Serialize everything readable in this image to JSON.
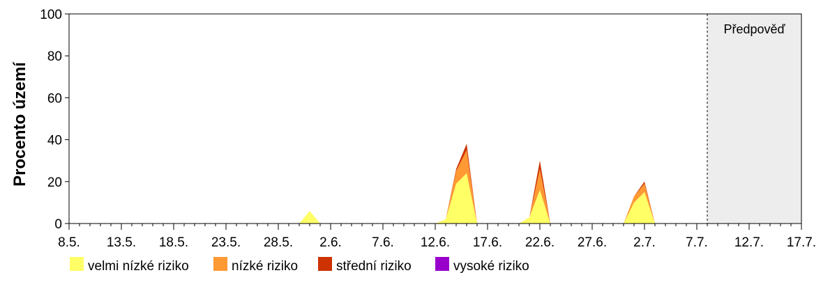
{
  "chart_data": {
    "type": "area",
    "stacked": true,
    "ylabel": "Procento území",
    "xlabel": "",
    "ylim": [
      0,
      100
    ],
    "yticks": [
      0,
      20,
      40,
      60,
      80,
      100
    ],
    "x_start_day": 0,
    "x_end_day": 70,
    "xtick_labels": [
      "8.5.",
      "13.5.",
      "18.5.",
      "23.5.",
      "28.5.",
      "2.6.",
      "7.6.",
      "12.6.",
      "17.6.",
      "22.6.",
      "27.6.",
      "2.7.",
      "7.7.",
      "12.7.",
      "17.7."
    ],
    "xtick_days": [
      0,
      5,
      10,
      15,
      20,
      25,
      30,
      35,
      40,
      45,
      50,
      55,
      60,
      65,
      70
    ],
    "forecast": {
      "label": "Předpověď",
      "start_day": 61
    },
    "grid": false,
    "legend_position": "bottom",
    "x_days": [
      0,
      22,
      23,
      24,
      35,
      36,
      37,
      38,
      39,
      43,
      44,
      45,
      46,
      47,
      53,
      54,
      55,
      56,
      57,
      70
    ],
    "series": [
      {
        "name": "velmi nízké riziko",
        "color": "#FFFF66",
        "values": [
          0,
          0,
          6,
          0,
          0,
          2,
          19,
          24,
          0,
          0,
          3,
          16,
          0,
          0,
          0,
          10,
          15,
          0,
          0,
          0
        ]
      },
      {
        "name": "nízké riziko",
        "color": "#FF9933",
        "values": [
          0,
          0,
          0,
          0,
          0,
          0,
          6,
          11,
          0,
          0,
          0,
          10,
          0,
          0,
          0,
          3,
          4,
          0,
          0,
          0
        ]
      },
      {
        "name": "střední riziko",
        "color": "#CC3300",
        "values": [
          0,
          0,
          0,
          0,
          0,
          0,
          1,
          3,
          0,
          0,
          0,
          4,
          0,
          0,
          0,
          0,
          1,
          0,
          0,
          0
        ]
      },
      {
        "name": "vysoké riziko",
        "color": "#9900CC",
        "values": [
          0,
          0,
          0,
          0,
          0,
          0,
          0,
          0,
          0,
          0,
          0,
          0,
          0,
          0,
          0,
          0,
          0,
          0,
          0,
          0
        ]
      }
    ]
  }
}
